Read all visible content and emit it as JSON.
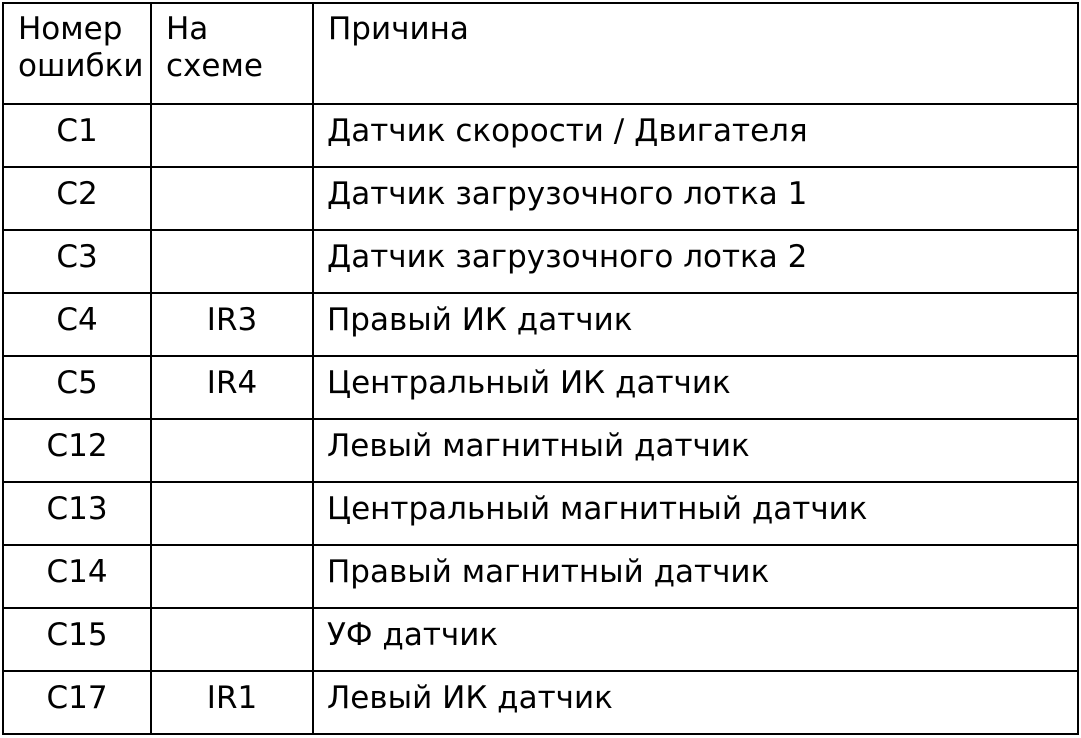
{
  "page": {
    "background_color": "#ffffff",
    "text_color": "#000000",
    "border_color": "#000000"
  },
  "table": {
    "columns": [
      {
        "key": "error_number",
        "label": "Номер ошибки"
      },
      {
        "key": "on_diagram",
        "label": "На схеме"
      },
      {
        "key": "cause",
        "label": "Причина"
      }
    ],
    "rows": [
      {
        "error_number": "C1",
        "on_diagram": "",
        "cause": "Датчик скорости / Двигателя"
      },
      {
        "error_number": "C2",
        "on_diagram": "",
        "cause": "Датчик загрузочного лотка 1"
      },
      {
        "error_number": "C3",
        "on_diagram": "",
        "cause": "Датчик загрузочного лотка 2"
      },
      {
        "error_number": "C4",
        "on_diagram": "IR3",
        "cause": "Правый ИК датчик"
      },
      {
        "error_number": "C5",
        "on_diagram": "IR4",
        "cause": "Центральный ИК датчик"
      },
      {
        "error_number": "C12",
        "on_diagram": "",
        "cause": "Левый магнитный датчик"
      },
      {
        "error_number": "C13",
        "on_diagram": "",
        "cause": "Центральный магнитный датчик"
      },
      {
        "error_number": "C14",
        "on_diagram": "",
        "cause": "Правый магнитный датчик"
      },
      {
        "error_number": "C15",
        "on_diagram": "",
        "cause": "УФ датчик"
      },
      {
        "error_number": "C17",
        "on_diagram": "IR1",
        "cause": "Левый ИК датчик"
      }
    ]
  }
}
